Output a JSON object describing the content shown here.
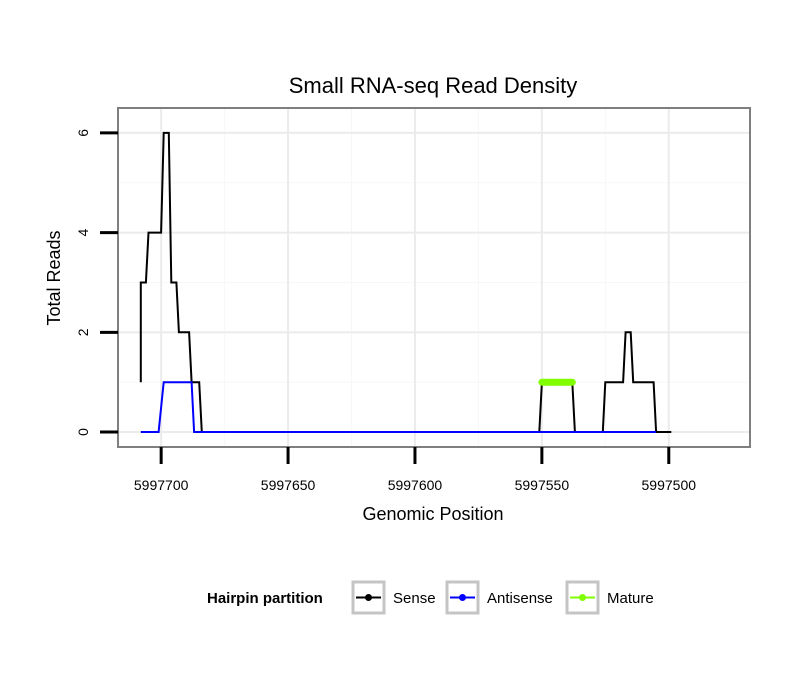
{
  "chart_data": {
    "type": "line",
    "title": "Small RNA-seq Read Density",
    "xlabel": "Genomic Position",
    "ylabel": "Total Reads",
    "x_reversed": true,
    "xlim": [
      5997717,
      5997468
    ],
    "ylim": [
      -0.3,
      6.5
    ],
    "x_ticks": [
      5997700,
      5997650,
      5997600,
      5997550,
      5997500
    ],
    "x_tick_labels": [
      "5997700",
      "5997650",
      "5997600",
      "5997550",
      "5997500"
    ],
    "y_ticks": [
      0,
      2,
      4,
      6
    ],
    "y_tick_labels": [
      "0",
      "2",
      "4",
      "6"
    ],
    "grid": true,
    "legend": {
      "title": "Hairpin partition",
      "position": "bottom",
      "entries": [
        "Sense",
        "Antisense",
        "Mature"
      ]
    },
    "series": [
      {
        "name": "Sense",
        "color": "#000000",
        "points": [
          [
            5997708,
            1
          ],
          [
            5997708,
            3
          ],
          [
            5997707,
            3
          ],
          [
            5997706,
            3
          ],
          [
            5997705,
            4
          ],
          [
            5997704,
            4
          ],
          [
            5997701,
            4
          ],
          [
            5997700,
            4
          ],
          [
            5997699,
            6
          ],
          [
            5997698,
            6
          ],
          [
            5997697,
            6
          ],
          [
            5997696,
            3
          ],
          [
            5997694,
            3
          ],
          [
            5997693,
            2
          ],
          [
            5997690,
            2
          ],
          [
            5997689,
            2
          ],
          [
            5997688,
            1
          ],
          [
            5997686,
            1
          ],
          [
            5997685,
            1
          ],
          [
            5997684,
            0
          ],
          [
            5997551,
            0
          ],
          [
            5997550,
            1
          ],
          [
            5997547,
            1
          ],
          [
            5997538,
            1
          ],
          [
            5997537,
            0
          ],
          [
            5997526,
            0
          ],
          [
            5997525,
            1
          ],
          [
            5997520,
            1
          ],
          [
            5997518,
            1
          ],
          [
            5997517,
            2
          ],
          [
            5997515,
            2
          ],
          [
            5997514,
            1
          ],
          [
            5997510,
            1
          ],
          [
            5997506,
            1
          ],
          [
            5997505,
            0
          ],
          [
            5997499,
            0
          ]
        ]
      },
      {
        "name": "Antisense",
        "color": "#0000ff",
        "points": [
          [
            5997708,
            0
          ],
          [
            5997701,
            0
          ],
          [
            5997699,
            1
          ],
          [
            5997698,
            1
          ],
          [
            5997688,
            1
          ],
          [
            5997687,
            0
          ],
          [
            5997505,
            0
          ]
        ]
      },
      {
        "name": "Mature",
        "color": "#7fff00",
        "points": [
          [
            5997550,
            1
          ],
          [
            5997538,
            1
          ]
        ]
      }
    ]
  }
}
